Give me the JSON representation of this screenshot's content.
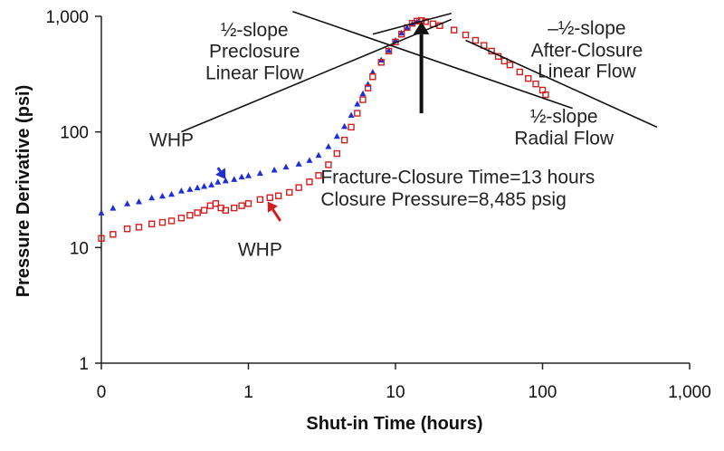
{
  "chart_data": {
    "type": "scatter",
    "title": "",
    "xlabel": "Shut-in Time (hours)",
    "ylabel": "Pressure Derivative (psi)",
    "x_scale": "log",
    "y_scale": "log",
    "xlim": [
      0.1,
      1000
    ],
    "ylim": [
      1,
      1000
    ],
    "x_ticks": [
      {
        "value": 0.1,
        "label": "0"
      },
      {
        "value": 1,
        "label": "1"
      },
      {
        "value": 10,
        "label": "10"
      },
      {
        "value": 100,
        "label": "100"
      },
      {
        "value": 1000,
        "label": "1,000"
      }
    ],
    "y_ticks": [
      {
        "value": 1,
        "label": "1"
      },
      {
        "value": 10,
        "label": "10"
      },
      {
        "value": 100,
        "label": "100"
      },
      {
        "value": 1000,
        "label": "1,000"
      }
    ],
    "grid": false,
    "series": [
      {
        "color": "#1f2fd6",
        "marker": "triangle",
        "points": [
          [
            0.1,
            20
          ],
          [
            0.12,
            22
          ],
          [
            0.15,
            24
          ],
          [
            0.18,
            25
          ],
          [
            0.22,
            27
          ],
          [
            0.26,
            28
          ],
          [
            0.3,
            29
          ],
          [
            0.35,
            31
          ],
          [
            0.4,
            32
          ],
          [
            0.45,
            33
          ],
          [
            0.5,
            34
          ],
          [
            0.56,
            35
          ],
          [
            0.62,
            37
          ],
          [
            0.7,
            38
          ],
          [
            0.8,
            39
          ],
          [
            0.9,
            41
          ],
          [
            1,
            42
          ],
          [
            1.2,
            44
          ],
          [
            1.5,
            47
          ],
          [
            1.8,
            50
          ],
          [
            2.2,
            53
          ],
          [
            2.6,
            57
          ],
          [
            3,
            63
          ],
          [
            3.5,
            75
          ],
          [
            4,
            92
          ],
          [
            4.5,
            112
          ],
          [
            5,
            140
          ],
          [
            5.5,
            175
          ],
          [
            6,
            215
          ],
          [
            6.5,
            260
          ],
          [
            7,
            330
          ],
          [
            8,
            420
          ],
          [
            9,
            510
          ],
          [
            10,
            620
          ],
          [
            11,
            720
          ],
          [
            12,
            800
          ],
          [
            13,
            860
          ],
          [
            14,
            900
          ]
        ]
      },
      {
        "color": "#d01f1f",
        "marker": "square",
        "points": [
          [
            0.1,
            12
          ],
          [
            0.12,
            13
          ],
          [
            0.15,
            14.5
          ],
          [
            0.18,
            15
          ],
          [
            0.22,
            16
          ],
          [
            0.26,
            16.5
          ],
          [
            0.3,
            17
          ],
          [
            0.35,
            18
          ],
          [
            0.4,
            19
          ],
          [
            0.45,
            20
          ],
          [
            0.5,
            21
          ],
          [
            0.55,
            23
          ],
          [
            0.6,
            24
          ],
          [
            0.65,
            22
          ],
          [
            0.7,
            21
          ],
          [
            0.8,
            22
          ],
          [
            0.9,
            23
          ],
          [
            1,
            24
          ],
          [
            1.2,
            26
          ],
          [
            1.4,
            27
          ],
          [
            1.6,
            28
          ],
          [
            1.9,
            30
          ],
          [
            2.2,
            33
          ],
          [
            2.6,
            37
          ],
          [
            3,
            42
          ],
          [
            3.5,
            52
          ],
          [
            4,
            65
          ],
          [
            4.5,
            85
          ],
          [
            5,
            110
          ],
          [
            5.5,
            145
          ],
          [
            6,
            190
          ],
          [
            6.5,
            240
          ],
          [
            7,
            300
          ],
          [
            8,
            400
          ],
          [
            9,
            500
          ],
          [
            10,
            600
          ],
          [
            11,
            700
          ],
          [
            12,
            800
          ],
          [
            13,
            870
          ],
          [
            14,
            910
          ],
          [
            15,
            920
          ],
          [
            16,
            900
          ],
          [
            18,
            860
          ],
          [
            20,
            830
          ],
          [
            25,
            760
          ],
          [
            30,
            690
          ],
          [
            35,
            620
          ],
          [
            40,
            560
          ],
          [
            45,
            500
          ],
          [
            50,
            450
          ],
          [
            55,
            410
          ],
          [
            60,
            380
          ],
          [
            70,
            330
          ],
          [
            80,
            290
          ],
          [
            90,
            260
          ],
          [
            100,
            230
          ],
          [
            105,
            210
          ]
        ]
      }
    ],
    "annotations": [
      {
        "text": "½-slope",
        "at": [
          1.1,
          670
        ],
        "anchor": "middle"
      },
      {
        "text": "Preclosure",
        "at": [
          1.1,
          440
        ],
        "anchor": "middle"
      },
      {
        "text": "Linear Flow",
        "at": [
          1.1,
          285
        ],
        "anchor": "middle"
      },
      {
        "text": "–½-slope",
        "at": [
          200,
          700
        ],
        "anchor": "middle"
      },
      {
        "text": "After-Closure",
        "at": [
          200,
          450
        ],
        "anchor": "middle"
      },
      {
        "text": "Linear Flow",
        "at": [
          200,
          295
        ],
        "anchor": "middle"
      },
      {
        "text": "½-slope",
        "at": [
          140,
          120
        ],
        "anchor": "middle"
      },
      {
        "text": "Radial Flow",
        "at": [
          140,
          78
        ],
        "anchor": "middle"
      },
      {
        "text": "WHP",
        "at": [
          0.3,
          75
        ],
        "anchor": "middle",
        "color": "#1f2fd6"
      },
      {
        "text": "WHP",
        "at": [
          1.2,
          8.5
        ],
        "anchor": "middle",
        "color": "#d01f1f"
      },
      {
        "text": "Fracture-Closure Time=13 hours",
        "at": [
          3.1,
          36
        ],
        "anchor": "start"
      },
      {
        "text": "Closure Pressure=8,485 psig",
        "at": [
          3.1,
          23
        ],
        "anchor": "start"
      }
    ],
    "trend_lines": [
      {
        "from": [
          0.35,
          100
        ],
        "to": [
          24,
          940
        ]
      },
      {
        "from": [
          2,
          1100
        ],
        "to": [
          160,
          160
        ]
      },
      {
        "from": [
          7,
          700
        ],
        "to": [
          24,
          1060
        ]
      },
      {
        "from": [
          30,
          620
        ],
        "to": [
          600,
          110
        ]
      }
    ],
    "arrows": [
      {
        "from": [
          15,
          145
        ],
        "to": [
          15,
          900
        ],
        "color": "#111",
        "width": 4
      },
      {
        "from": [
          0.62,
          49
        ],
        "to": [
          0.7,
          39
        ],
        "color": "#1f2fd6",
        "width": 3
      },
      {
        "from": [
          1.65,
          17
        ],
        "to": [
          1.35,
          25
        ],
        "color": "#d01f1f",
        "width": 3
      }
    ]
  }
}
